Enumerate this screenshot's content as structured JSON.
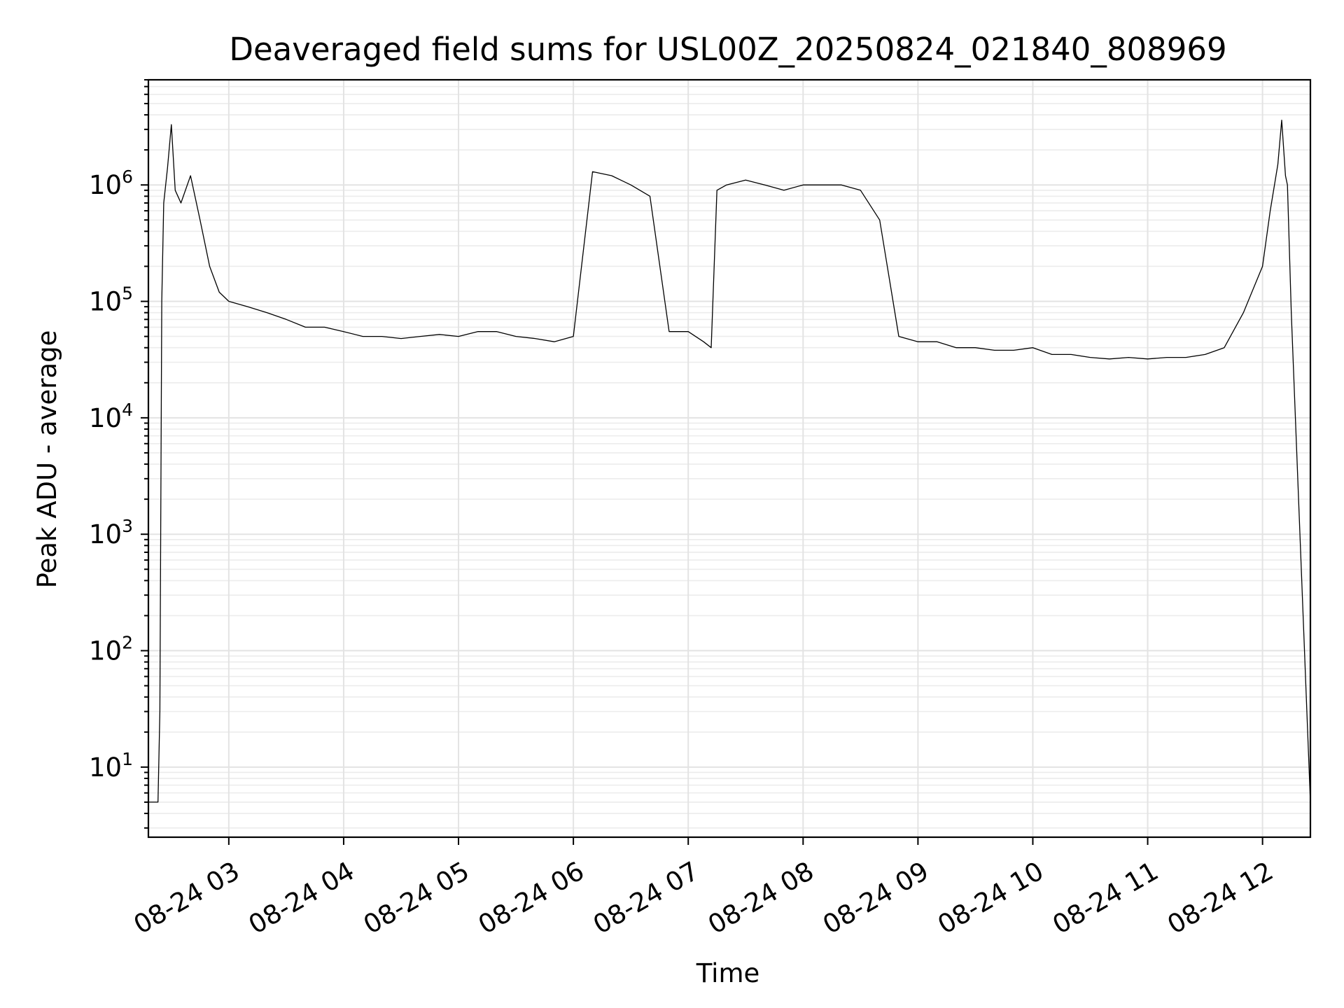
{
  "chart_data": {
    "type": "line",
    "title": "Deaveraged field sums for USL00Z_20250824_021840_808969",
    "xlabel": "Time",
    "ylabel": "Peak ADU - average",
    "yscale": "log",
    "grid": true,
    "grid_minor": true,
    "colors": {
      "line": "#000000",
      "grid": "#e3e3e3",
      "background": "#ffffff"
    },
    "xlim": [
      "2025-08-24 02:18",
      "2025-08-24 12:25"
    ],
    "ylim": [
      2.5,
      8000000
    ],
    "x_ticks": [
      {
        "value": "2025-08-24 03:00",
        "label": "08-24 03"
      },
      {
        "value": "2025-08-24 04:00",
        "label": "08-24 04"
      },
      {
        "value": "2025-08-24 05:00",
        "label": "08-24 05"
      },
      {
        "value": "2025-08-24 06:00",
        "label": "08-24 06"
      },
      {
        "value": "2025-08-24 07:00",
        "label": "08-24 07"
      },
      {
        "value": "2025-08-24 08:00",
        "label": "08-24 08"
      },
      {
        "value": "2025-08-24 09:00",
        "label": "08-24 09"
      },
      {
        "value": "2025-08-24 10:00",
        "label": "08-24 10"
      },
      {
        "value": "2025-08-24 11:00",
        "label": "08-24 11"
      },
      {
        "value": "2025-08-24 12:00",
        "label": "08-24 12"
      }
    ],
    "y_ticks": [
      {
        "value": 10,
        "base": "10",
        "exp": "1"
      },
      {
        "value": 100,
        "base": "10",
        "exp": "2"
      },
      {
        "value": 1000,
        "base": "10",
        "exp": "3"
      },
      {
        "value": 10000,
        "base": "10",
        "exp": "4"
      },
      {
        "value": 100000,
        "base": "10",
        "exp": "5"
      },
      {
        "value": 1000000,
        "base": "10",
        "exp": "6"
      }
    ],
    "series": [
      {
        "x": [
          "2025-08-24 02:18",
          "2025-08-24 02:23",
          "2025-08-24 02:24",
          "2025-08-24 02:25",
          "2025-08-24 02:26",
          "2025-08-24 02:28",
          "2025-08-24 02:30",
          "2025-08-24 02:32",
          "2025-08-24 02:35",
          "2025-08-24 02:40",
          "2025-08-24 02:45",
          "2025-08-24 02:50",
          "2025-08-24 02:55",
          "2025-08-24 03:00",
          "2025-08-24 03:10",
          "2025-08-24 03:20",
          "2025-08-24 03:30",
          "2025-08-24 03:40",
          "2025-08-24 03:50",
          "2025-08-24 04:00",
          "2025-08-24 04:10",
          "2025-08-24 04:20",
          "2025-08-24 04:30",
          "2025-08-24 04:40",
          "2025-08-24 04:50",
          "2025-08-24 05:00",
          "2025-08-24 05:10",
          "2025-08-24 05:20",
          "2025-08-24 05:30",
          "2025-08-24 05:40",
          "2025-08-24 05:50",
          "2025-08-24 06:00",
          "2025-08-24 06:10",
          "2025-08-24 06:20",
          "2025-08-24 06:30",
          "2025-08-24 06:40",
          "2025-08-24 06:50",
          "2025-08-24 07:00",
          "2025-08-24 07:08",
          "2025-08-24 07:12",
          "2025-08-24 07:15",
          "2025-08-24 07:20",
          "2025-08-24 07:30",
          "2025-08-24 07:40",
          "2025-08-24 07:50",
          "2025-08-24 08:00",
          "2025-08-24 08:10",
          "2025-08-24 08:20",
          "2025-08-24 08:30",
          "2025-08-24 08:40",
          "2025-08-24 08:50",
          "2025-08-24 09:00",
          "2025-08-24 09:10",
          "2025-08-24 09:20",
          "2025-08-24 09:30",
          "2025-08-24 09:40",
          "2025-08-24 09:50",
          "2025-08-24 10:00",
          "2025-08-24 10:10",
          "2025-08-24 10:20",
          "2025-08-24 10:30",
          "2025-08-24 10:40",
          "2025-08-24 10:50",
          "2025-08-24 11:00",
          "2025-08-24 11:10",
          "2025-08-24 11:20",
          "2025-08-24 11:30",
          "2025-08-24 11:40",
          "2025-08-24 11:50",
          "2025-08-24 12:00",
          "2025-08-24 12:04",
          "2025-08-24 12:08",
          "2025-08-24 12:10",
          "2025-08-24 12:12",
          "2025-08-24 12:13",
          "2025-08-24 12:15",
          "2025-08-24 12:25"
        ],
        "y": [
          5,
          5,
          30,
          100000,
          700000,
          1400000,
          3300000,
          900000,
          700000,
          1200000,
          500000,
          200000,
          120000,
          100000,
          90000,
          80000,
          70000,
          60000,
          60000,
          55000,
          50000,
          50000,
          48000,
          50000,
          52000,
          50000,
          55000,
          55000,
          50000,
          48000,
          45000,
          50000,
          1300000,
          1200000,
          1000000,
          800000,
          55000,
          55000,
          45000,
          40000,
          900000,
          1000000,
          1100000,
          1000000,
          900000,
          1000000,
          1000000,
          1000000,
          900000,
          500000,
          50000,
          45000,
          45000,
          40000,
          40000,
          38000,
          38000,
          40000,
          35000,
          35000,
          33000,
          32000,
          33000,
          32000,
          33000,
          33000,
          35000,
          40000,
          80000,
          200000,
          600000,
          1500000,
          3600000,
          1200000,
          1000000,
          80000,
          5
        ]
      }
    ]
  }
}
